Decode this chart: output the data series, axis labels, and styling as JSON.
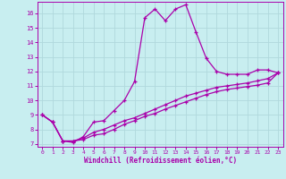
{
  "xlabel": "Windchill (Refroidissement éolien,°C)",
  "bg_color": "#c8eef0",
  "grid_color": "#b0d8dc",
  "line_color": "#aa00aa",
  "xlim": [
    -0.5,
    23.5
  ],
  "ylim": [
    6.8,
    16.8
  ],
  "xticks": [
    0,
    1,
    2,
    3,
    4,
    5,
    6,
    7,
    8,
    9,
    10,
    11,
    12,
    13,
    14,
    15,
    16,
    17,
    18,
    19,
    20,
    21,
    22,
    23
  ],
  "yticks": [
    7,
    8,
    9,
    10,
    11,
    12,
    13,
    14,
    15,
    16
  ],
  "line1_x": [
    0,
    1,
    2,
    3,
    4,
    5,
    6,
    7,
    8,
    9,
    10,
    11,
    12,
    13,
    14,
    15,
    16,
    17,
    18,
    19,
    20,
    21,
    22,
    23
  ],
  "line1_y": [
    9.0,
    8.5,
    7.2,
    7.1,
    7.5,
    8.5,
    8.6,
    9.3,
    10.0,
    11.3,
    15.7,
    16.3,
    15.5,
    16.3,
    16.6,
    14.7,
    12.9,
    12.0,
    11.8,
    11.8,
    11.8,
    12.1,
    12.1,
    11.9
  ],
  "line2_x": [
    0,
    1,
    2,
    3,
    4,
    5,
    6,
    7,
    8,
    9,
    10,
    11,
    12,
    13,
    14,
    15,
    16,
    17,
    18,
    19,
    20,
    21,
    22,
    23
  ],
  "line2_y": [
    9.0,
    8.5,
    7.2,
    7.2,
    7.4,
    7.8,
    8.0,
    8.3,
    8.6,
    8.8,
    9.1,
    9.4,
    9.7,
    10.0,
    10.3,
    10.5,
    10.7,
    10.9,
    11.0,
    11.1,
    11.2,
    11.35,
    11.5,
    11.9
  ],
  "line3_x": [
    0,
    1,
    2,
    3,
    4,
    5,
    6,
    7,
    8,
    9,
    10,
    11,
    12,
    13,
    14,
    15,
    16,
    17,
    18,
    19,
    20,
    21,
    22,
    23
  ],
  "line3_y": [
    9.0,
    8.5,
    7.2,
    7.2,
    7.3,
    7.6,
    7.7,
    8.0,
    8.35,
    8.6,
    8.9,
    9.1,
    9.4,
    9.65,
    9.9,
    10.15,
    10.4,
    10.6,
    10.75,
    10.85,
    10.95,
    11.05,
    11.2,
    11.9
  ]
}
